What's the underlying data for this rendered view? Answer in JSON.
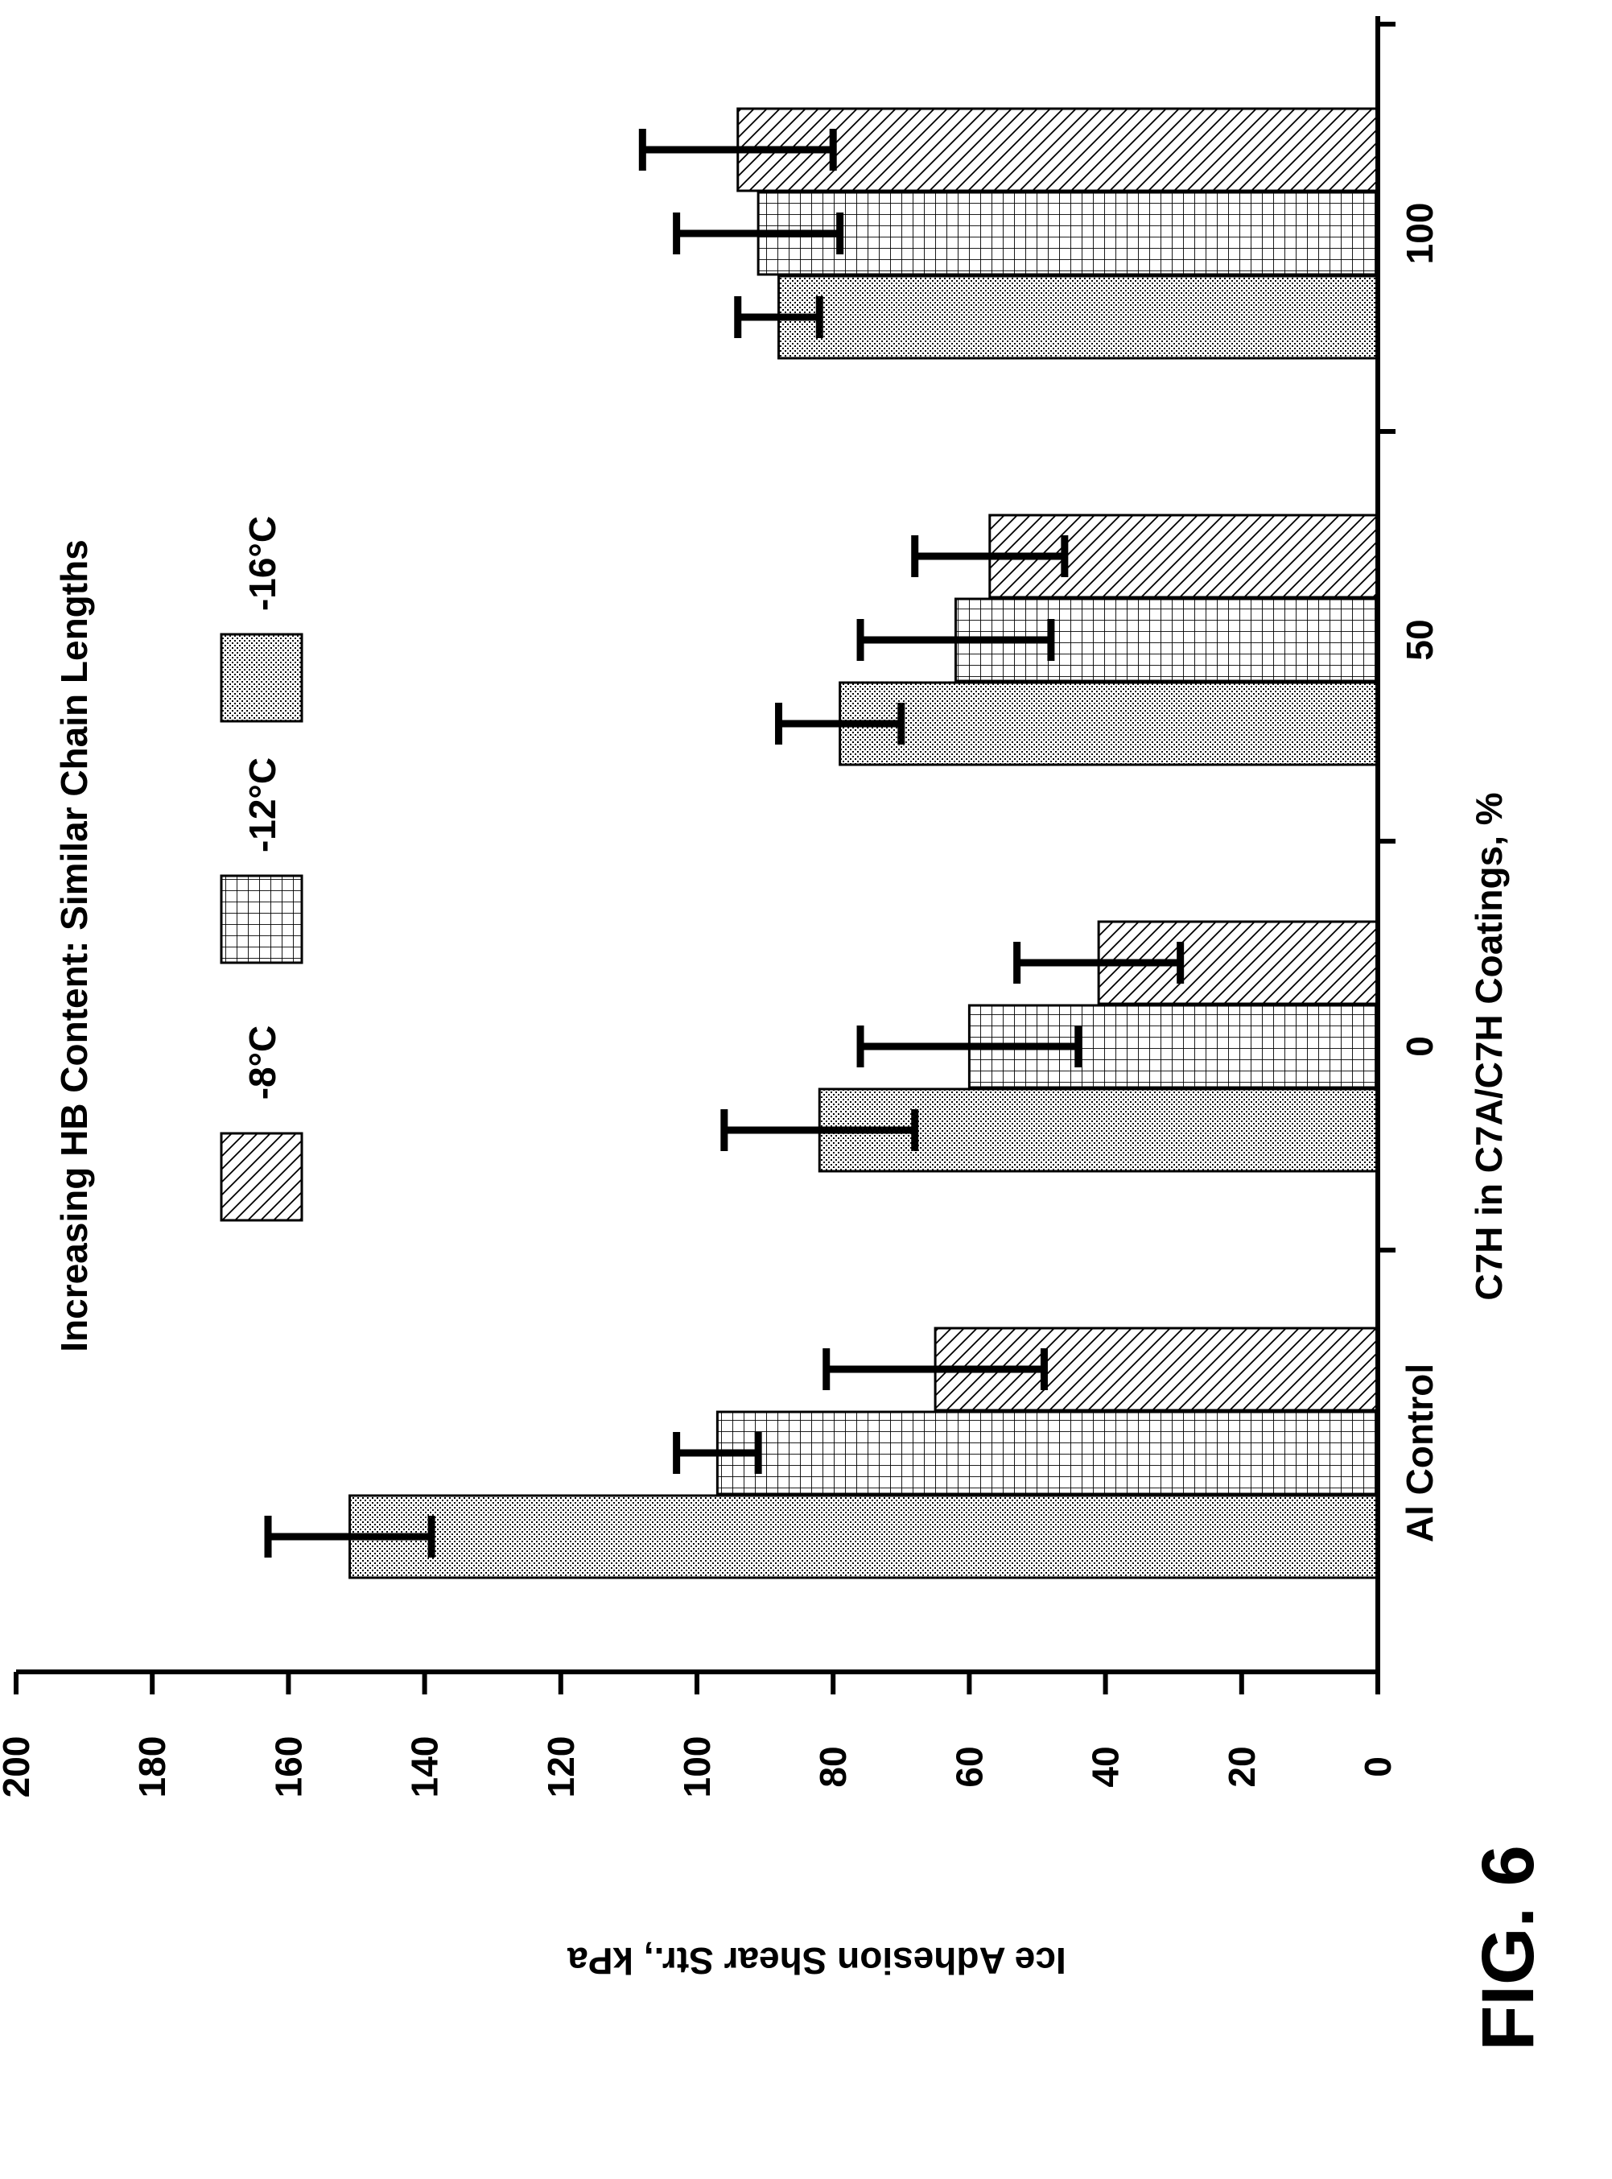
{
  "figure_label": "FIG. 6",
  "chart_data": {
    "type": "bar",
    "title": "Increasing HB Content: Similar Chain Lengths",
    "xlabel": "C7H in C7A/C7H Coatings, %",
    "ylabel": "Ice Adhesion Shear Str., kPa",
    "ylim": [
      0,
      200
    ],
    "yticks": [
      "0",
      "20",
      "40",
      "60",
      "80",
      "100",
      "120",
      "140",
      "160",
      "180",
      "200"
    ],
    "categories": [
      "Al Control",
      "0",
      "50",
      "100"
    ],
    "series": [
      {
        "name": "-8°C",
        "pattern": "diagonal-hatch",
        "values": [
          65,
          41,
          57,
          94
        ],
        "error": [
          16,
          12,
          11,
          14
        ]
      },
      {
        "name": "-12°C",
        "pattern": "grid",
        "values": [
          97,
          60,
          62,
          91
        ],
        "error": [
          6,
          16,
          14,
          12
        ]
      },
      {
        "name": "-16°C",
        "pattern": "dots",
        "values": [
          151,
          82,
          79,
          88
        ],
        "error": [
          12,
          14,
          9,
          6
        ]
      }
    ],
    "legend_position": "top",
    "orientation": "rotated 90° counter-clockwise on the page"
  }
}
